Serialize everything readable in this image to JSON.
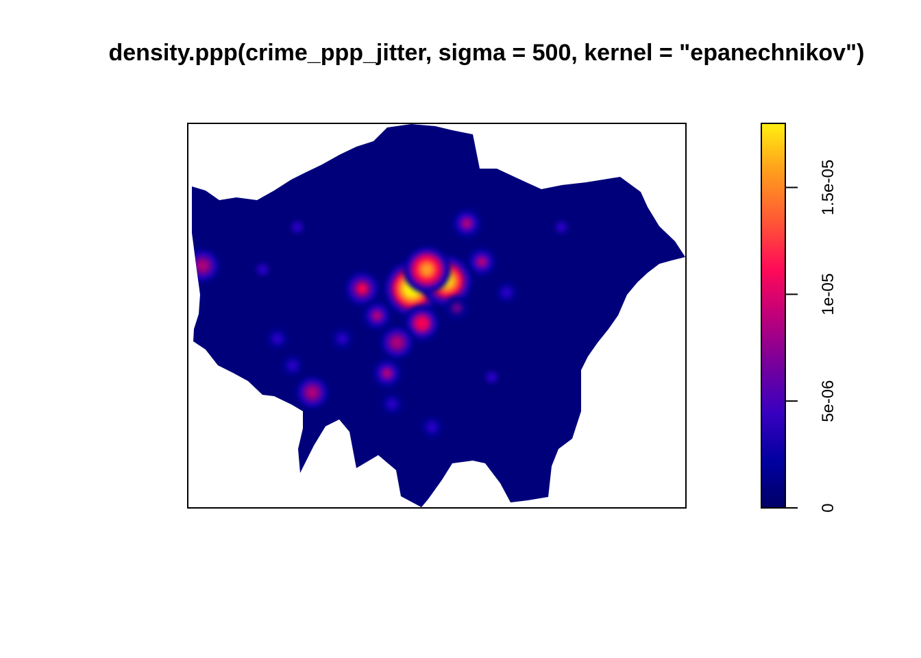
{
  "title": "density.ppp(crime_ppp_jitter, sigma = 500, kernel = \"epanechnikov\")",
  "colors": {
    "background": "#ffffff",
    "frame": "#000000",
    "palette": [
      "#000080",
      "#00008f",
      "#2b00c9",
      "#6a008f",
      "#b4007a",
      "#ff0050",
      "#ff5a30",
      "#ffa020",
      "#ffe510",
      "#ffff00"
    ]
  },
  "chart_data": {
    "type": "heatmap",
    "title": "density.ppp(crime_ppp_jitter, sigma = 500, kernel = \"epanechnikov\")",
    "xlabel": "",
    "ylabel": "",
    "colorbar": {
      "range": [
        0,
        1.8e-05
      ],
      "ticks": [
        {
          "value": 0,
          "label": "0"
        },
        {
          "value": 5e-06,
          "label": "5e-06"
        },
        {
          "value": 1e-05,
          "label": "1e-05"
        },
        {
          "value": 1.5e-05,
          "label": "1.5e-05"
        }
      ]
    },
    "hotspots": [
      {
        "x": 0.45,
        "y": 0.43,
        "value": 1.8e-05
      },
      {
        "x": 0.52,
        "y": 0.41,
        "value": 1.6e-05
      },
      {
        "x": 0.48,
        "y": 0.38,
        "value": 1.4e-05
      },
      {
        "x": 0.47,
        "y": 0.52,
        "value": 9.5e-06
      },
      {
        "x": 0.42,
        "y": 0.57,
        "value": 8e-06
      },
      {
        "x": 0.35,
        "y": 0.43,
        "value": 9e-06
      },
      {
        "x": 0.38,
        "y": 0.5,
        "value": 7e-06
      },
      {
        "x": 0.56,
        "y": 0.26,
        "value": 7.5e-06
      },
      {
        "x": 0.59,
        "y": 0.36,
        "value": 7e-06
      },
      {
        "x": 0.03,
        "y": 0.37,
        "value": 8.5e-06
      },
      {
        "x": 0.25,
        "y": 0.7,
        "value": 8e-06
      },
      {
        "x": 0.4,
        "y": 0.65,
        "value": 7e-06
      },
      {
        "x": 0.54,
        "y": 0.48,
        "value": 5.5e-06
      },
      {
        "x": 0.31,
        "y": 0.56,
        "value": 4.5e-06
      },
      {
        "x": 0.18,
        "y": 0.56,
        "value": 4e-06
      },
      {
        "x": 0.49,
        "y": 0.79,
        "value": 4e-06
      },
      {
        "x": 0.41,
        "y": 0.73,
        "value": 3.5e-06
      },
      {
        "x": 0.64,
        "y": 0.44,
        "value": 3.5e-06
      },
      {
        "x": 0.21,
        "y": 0.63,
        "value": 3.5e-06
      },
      {
        "x": 0.22,
        "y": 0.27,
        "value": 3e-06
      },
      {
        "x": 0.75,
        "y": 0.27,
        "value": 3e-06
      },
      {
        "x": 0.15,
        "y": 0.38,
        "value": 3e-06
      },
      {
        "x": 0.61,
        "y": 0.66,
        "value": 3e-06
      }
    ]
  }
}
